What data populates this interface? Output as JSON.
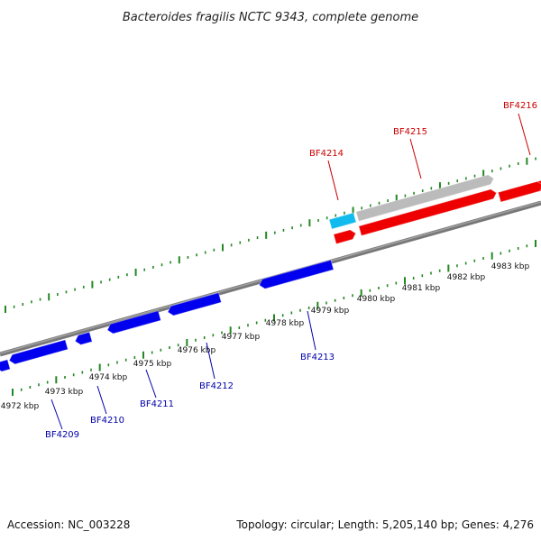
{
  "title": "Bacteroides fragilis NCTC 9343, complete genome",
  "footer": {
    "accession": "Accession: NC_003228",
    "topology": "Topology: circular; Length: 5,205,140 bp; Genes: 4,276"
  },
  "colors": {
    "forward_gene": "#ee0000",
    "reverse_gene": "#0000ee",
    "forward_label": "#cc0000",
    "reverse_label": "#0000aa",
    "rna_feature": "#bbbbbb",
    "special_feature": "#11bbee",
    "ticks": "#228822",
    "backbone": "#888888"
  },
  "kbp_labels": [
    "4972 kbp",
    "4973 kbp",
    "4974 kbp",
    "4975 kbp",
    "4976 kbp",
    "4977 kbp",
    "4978 kbp",
    "4979 kbp",
    "4980 kbp",
    "4981 kbp",
    "4982 kbp",
    "4983 kbp"
  ],
  "forward_genes": [
    "BF4214",
    "BF4215",
    "BF4216"
  ],
  "reverse_genes": [
    "BF4209",
    "BF4210",
    "BF4211",
    "BF4212",
    "BF4213"
  ]
}
